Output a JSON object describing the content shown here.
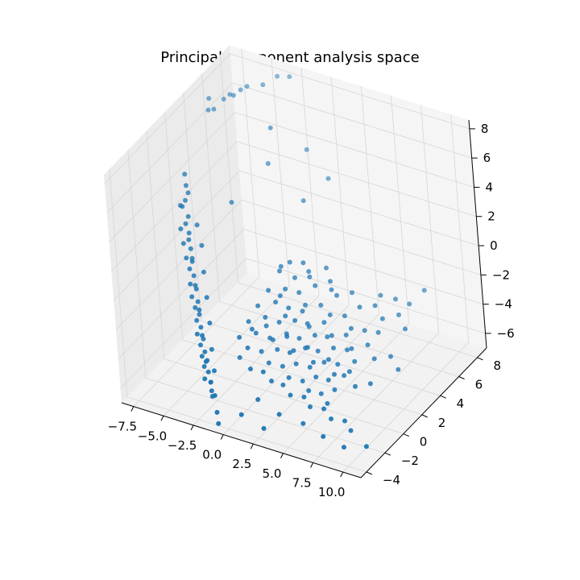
{
  "chart_data": {
    "type": "scatter",
    "title": "Principal component analysis space",
    "xlabel": "",
    "ylabel": "",
    "zlabel": "",
    "projection": "3d",
    "grid": true,
    "xlim": [
      -8.5,
      11.5
    ],
    "ylim": [
      -4.6,
      9.0
    ],
    "zlim": [
      -7.0,
      8.6
    ],
    "xticks": [
      "−7.5",
      "−5.0",
      "−2.5",
      "0.0",
      "2.5",
      "5.0",
      "7.5",
      "10.0"
    ],
    "xtick_values": [
      -7.5,
      -5.0,
      -2.5,
      0.0,
      2.5,
      5.0,
      7.5,
      10.0
    ],
    "yticks": [
      "−4",
      "−2",
      "0",
      "2",
      "4",
      "6",
      "8"
    ],
    "ytick_values": [
      -4,
      -2,
      0,
      2,
      4,
      6,
      8
    ],
    "zticks": [
      "−6",
      "−4",
      "−2",
      "0",
      "2",
      "4",
      "6",
      "8"
    ],
    "ztick_values": [
      -6,
      -4,
      -2,
      0,
      2,
      4,
      6,
      8
    ],
    "series": [
      {
        "color": "#1f77b4",
        "points": [
          [
            -7.9,
            5.8,
            7.2
          ],
          [
            -7.6,
            5.3,
            6.8
          ],
          [
            -7.2,
            5.4,
            6.9
          ],
          [
            -6.8,
            6.0,
            7.3
          ],
          [
            -6.5,
            6.3,
            7.5
          ],
          [
            -6.1,
            6.2,
            7.6
          ],
          [
            -5.8,
            6.6,
            7.8
          ],
          [
            -5.4,
            6.8,
            8.0
          ],
          [
            -4.2,
            7.0,
            8.3
          ],
          [
            -3.6,
            7.8,
            8.5
          ],
          [
            -2.9,
            8.2,
            8.4
          ],
          [
            -2.3,
            5.2,
            7.0
          ],
          [
            -6.8,
            1.5,
            5.1
          ],
          [
            -6.5,
            1.2,
            4.6
          ],
          [
            -6.2,
            1.0,
            4.3
          ],
          [
            -6.6,
            0.6,
            3.6
          ],
          [
            -6.4,
            0.9,
            3.8
          ],
          [
            -6.0,
            0.6,
            3.0
          ],
          [
            -5.7,
            0.2,
            2.2
          ],
          [
            -5.4,
            -0.1,
            1.4
          ],
          [
            -5.1,
            -0.4,
            0.8
          ],
          [
            -4.8,
            -0.7,
            0.1
          ],
          [
            -4.5,
            -0.9,
            -0.6
          ],
          [
            -4.2,
            -1.2,
            -1.2
          ],
          [
            -3.9,
            -1.5,
            -1.8
          ],
          [
            -3.6,
            -1.8,
            -2.4
          ],
          [
            -3.3,
            -2.0,
            -3.0
          ],
          [
            -3.0,
            -2.3,
            -3.6
          ],
          [
            -2.7,
            -2.6,
            -4.0
          ],
          [
            -2.4,
            -2.8,
            -4.5
          ],
          [
            -2.1,
            -3.0,
            -5.0
          ],
          [
            -1.9,
            -3.2,
            -5.4
          ],
          [
            -6.3,
            0.1,
            2.4
          ],
          [
            -5.9,
            -0.2,
            1.7
          ],
          [
            -5.5,
            -0.5,
            1.0
          ],
          [
            -5.2,
            -0.6,
            0.4
          ],
          [
            -4.9,
            -1.0,
            -0.3
          ],
          [
            -4.6,
            -1.3,
            -0.9
          ],
          [
            -4.3,
            -1.4,
            -1.5
          ],
          [
            -4.0,
            -1.7,
            -2.1
          ],
          [
            -3.7,
            -2.1,
            -2.7
          ],
          [
            -3.4,
            -2.2,
            -3.3
          ],
          [
            -3.1,
            -2.5,
            -3.8
          ],
          [
            -2.8,
            -2.7,
            -4.3
          ],
          [
            -2.5,
            -3.1,
            -4.8
          ],
          [
            -6.7,
            0.9,
            3.3
          ],
          [
            -6.1,
            0.4,
            2.6
          ],
          [
            -5.6,
            0.0,
            1.9
          ],
          [
            -5.0,
            -0.5,
            1.1
          ],
          [
            -4.4,
            -1.1,
            -0.2
          ],
          [
            -3.8,
            -1.6,
            -1.4
          ],
          [
            -3.2,
            -2.2,
            -2.6
          ],
          [
            -2.6,
            -2.6,
            -3.9
          ],
          [
            -2.0,
            -3.1,
            -4.9
          ],
          [
            -1.7,
            -3.4,
            -5.6
          ],
          [
            -5.3,
            0.6,
            2.6
          ],
          [
            -4.7,
            0.2,
            1.6
          ],
          [
            -4.1,
            -0.5,
            0.4
          ],
          [
            -3.5,
            -1.1,
            -0.8
          ],
          [
            -2.9,
            -1.7,
            -2.0
          ],
          [
            -2.3,
            -2.4,
            -3.2
          ],
          [
            -1.8,
            -2.9,
            -4.2
          ],
          [
            -1.4,
            -3.5,
            -5.4
          ],
          [
            -0.9,
            -4.0,
            -6.1
          ],
          [
            -0.6,
            -4.3,
            -6.6
          ],
          [
            -3.9,
            2.6,
            3.2
          ],
          [
            -2.4,
            4.8,
            4.8
          ],
          [
            -0.2,
            6.2,
            5.4
          ],
          [
            1.8,
            5.8,
            4.2
          ],
          [
            0.9,
            4.2,
            3.5
          ],
          [
            1.2,
            2.0,
            0.8
          ],
          [
            2.0,
            2.4,
            0.7
          ],
          [
            2.8,
            2.0,
            0.2
          ],
          [
            3.6,
            2.8,
            0.5
          ],
          [
            4.5,
            2.1,
            -0.3
          ],
          [
            0.6,
            1.6,
            0.3
          ],
          [
            1.4,
            1.1,
            -0.4
          ],
          [
            2.3,
            1.4,
            -0.6
          ],
          [
            3.1,
            1.0,
            -1.0
          ],
          [
            4.0,
            1.5,
            -1.1
          ],
          [
            4.9,
            1.3,
            -1.4
          ],
          [
            5.8,
            1.7,
            -1.5
          ],
          [
            6.7,
            1.2,
            -1.8
          ],
          [
            7.5,
            1.6,
            -2.0
          ],
          [
            8.4,
            1.9,
            -2.1
          ],
          [
            0.2,
            0.8,
            -0.6
          ],
          [
            1.0,
            0.5,
            -1.0
          ],
          [
            1.9,
            0.7,
            -1.3
          ],
          [
            2.7,
            0.3,
            -1.7
          ],
          [
            3.5,
            0.6,
            -1.9
          ],
          [
            4.4,
            0.2,
            -2.2
          ],
          [
            5.2,
            0.5,
            -2.3
          ],
          [
            6.0,
            0.1,
            -2.6
          ],
          [
            6.9,
            0.4,
            -2.7
          ],
          [
            7.8,
            0.0,
            -3.0
          ],
          [
            -0.2,
            0.1,
            -1.3
          ],
          [
            0.7,
            -0.3,
            -1.6
          ],
          [
            1.6,
            0.0,
            -1.9
          ],
          [
            2.5,
            -0.4,
            -2.2
          ],
          [
            3.3,
            -0.1,
            -2.5
          ],
          [
            4.1,
            -0.5,
            -2.7
          ],
          [
            4.9,
            -0.2,
            -2.9
          ],
          [
            5.7,
            -0.6,
            -3.2
          ],
          [
            6.6,
            -0.3,
            -3.3
          ],
          [
            7.4,
            -0.7,
            -3.6
          ],
          [
            -0.5,
            -0.6,
            -2.0
          ],
          [
            0.4,
            -1.0,
            -2.3
          ],
          [
            1.3,
            -0.7,
            -2.6
          ],
          [
            2.2,
            -1.1,
            -2.9
          ],
          [
            3.0,
            -0.8,
            -3.1
          ],
          [
            3.8,
            -1.2,
            -3.4
          ],
          [
            4.7,
            -0.9,
            -3.6
          ],
          [
            5.5,
            -1.3,
            -3.8
          ],
          [
            6.3,
            -1.0,
            -4.0
          ],
          [
            7.1,
            -1.4,
            -4.2
          ],
          [
            -0.8,
            -1.3,
            -2.7
          ],
          [
            0.1,
            -1.6,
            -3.0
          ],
          [
            1.0,
            -1.3,
            -3.2
          ],
          [
            1.9,
            -1.7,
            -3.5
          ],
          [
            2.8,
            -1.4,
            -3.7
          ],
          [
            3.6,
            -1.8,
            -4.0
          ],
          [
            4.5,
            -1.5,
            -4.2
          ],
          [
            5.3,
            -1.9,
            -4.4
          ],
          [
            6.1,
            -1.6,
            -4.6
          ],
          [
            6.9,
            -2.0,
            -4.8
          ],
          [
            0.5,
            1.9,
            0.4
          ],
          [
            1.7,
            1.8,
            0.0
          ],
          [
            2.5,
            2.3,
            0.3
          ],
          [
            3.3,
            1.9,
            -0.2
          ],
          [
            4.2,
            2.4,
            0.0
          ],
          [
            5.0,
            2.0,
            -0.5
          ],
          [
            5.9,
            2.5,
            -0.4
          ],
          [
            6.8,
            2.1,
            -0.9
          ],
          [
            7.7,
            2.6,
            -0.9
          ],
          [
            8.6,
            2.2,
            -1.3
          ],
          [
            9.5,
            2.8,
            -1.2
          ],
          [
            10.3,
            2.4,
            -1.7
          ],
          [
            1.1,
            0.9,
            -0.8
          ],
          [
            2.0,
            0.2,
            -1.5
          ],
          [
            2.9,
            0.9,
            -1.4
          ],
          [
            3.8,
            0.4,
            -1.9
          ],
          [
            4.6,
            1.0,
            -1.8
          ],
          [
            5.5,
            0.6,
            -2.2
          ],
          [
            6.4,
            1.0,
            -2.2
          ],
          [
            7.2,
            0.5,
            -2.6
          ],
          [
            8.1,
            1.1,
            -2.5
          ],
          [
            9.0,
            0.6,
            -2.9
          ],
          [
            9.9,
            1.2,
            -2.9
          ],
          [
            10.8,
            0.8,
            -3.3
          ],
          [
            0.0,
            -0.9,
            -2.2
          ],
          [
            0.9,
            -0.5,
            -2.0
          ],
          [
            1.8,
            -1.0,
            -2.4
          ],
          [
            2.6,
            -0.5,
            -2.3
          ],
          [
            3.5,
            -1.0,
            -2.7
          ],
          [
            4.3,
            -0.5,
            -2.6
          ],
          [
            5.2,
            -1.1,
            -3.0
          ],
          [
            6.1,
            -0.6,
            -2.9
          ],
          [
            7.0,
            -1.2,
            -3.3
          ],
          [
            7.9,
            -0.7,
            -3.2
          ],
          [
            8.8,
            -1.3,
            -3.6
          ],
          [
            9.7,
            -0.8,
            -3.5
          ],
          [
            -0.3,
            -2.0,
            -3.5
          ],
          [
            0.8,
            -2.3,
            -3.8
          ],
          [
            1.7,
            -2.1,
            -3.9
          ],
          [
            2.6,
            -2.4,
            -4.1
          ],
          [
            3.4,
            -2.2,
            -4.3
          ],
          [
            4.3,
            -2.6,
            -4.5
          ],
          [
            5.2,
            -2.3,
            -4.6
          ],
          [
            6.0,
            -2.7,
            -4.8
          ],
          [
            6.9,
            -2.4,
            -4.9
          ],
          [
            7.8,
            -2.8,
            -5.1
          ],
          [
            8.7,
            -2.5,
            -5.2
          ],
          [
            9.5,
            -2.9,
            -5.4
          ],
          [
            2.0,
            -3.2,
            -5.0
          ],
          [
            3.9,
            -3.4,
            -5.4
          ],
          [
            5.8,
            -3.3,
            -5.6
          ],
          [
            7.6,
            -3.5,
            -5.9
          ],
          [
            9.4,
            -3.6,
            -6.1
          ],
          [
            10.9,
            -3.1,
            -6.0
          ],
          [
            1.0,
            -3.8,
            -5.9
          ],
          [
            3.0,
            -4.0,
            -6.2
          ],
          [
            10.4,
            4.5,
            -0.4
          ],
          [
            9.8,
            3.6,
            -0.9
          ],
          [
            8.9,
            3.3,
            -0.6
          ],
          [
            7.9,
            3.0,
            -0.4
          ]
        ]
      }
    ]
  }
}
